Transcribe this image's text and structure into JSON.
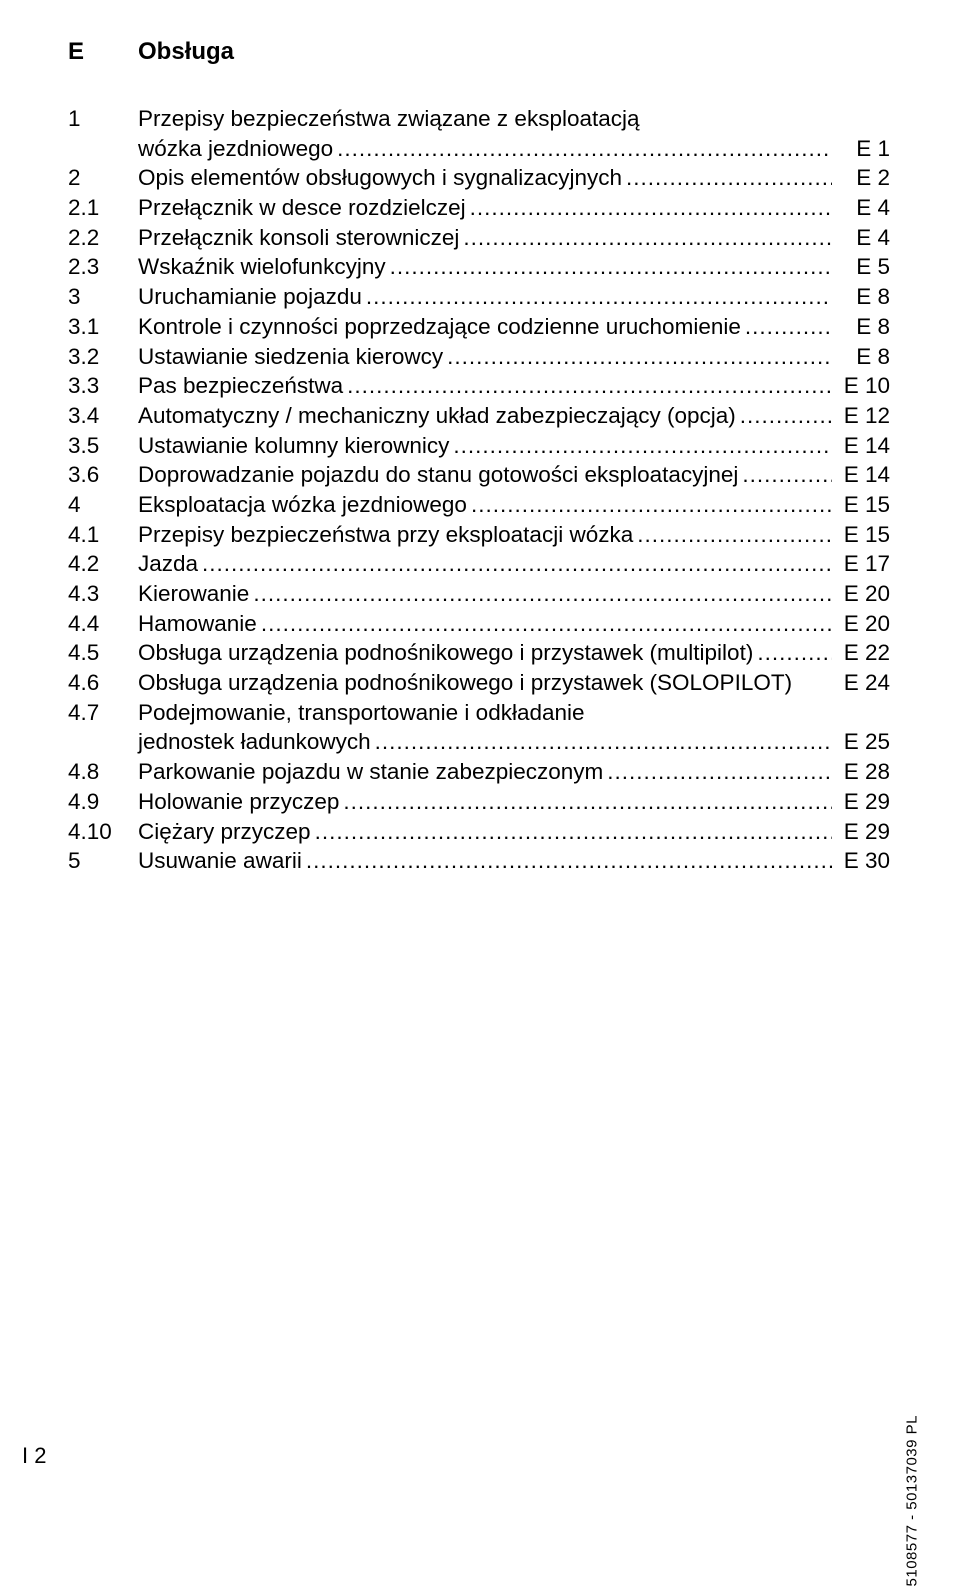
{
  "section": {
    "num": "E",
    "title": "Obsługa"
  },
  "entries": [
    {
      "num": "1",
      "title": "Przepisy bezpieczeństwa związane z eksploatacją",
      "wrap": true,
      "wrap_title": "wózka jezdniowego",
      "page": "E 1"
    },
    {
      "num": "2",
      "title": "Opis elementów obsługowych i sygnalizacyjnych",
      "page": "E 2"
    },
    {
      "num": "2.1",
      "title": "Przełącznik w desce rozdzielczej",
      "page": "E 4"
    },
    {
      "num": "2.2",
      "title": "Przełącznik konsoli sterowniczej",
      "page": "E 4"
    },
    {
      "num": "2.3",
      "title": "Wskaźnik wielofunkcyjny",
      "page": "E 5"
    },
    {
      "num": "3",
      "title": "Uruchamianie pojazdu",
      "page": "E 8"
    },
    {
      "num": "3.1",
      "title": "Kontrole i czynności poprzedzające codzienne uruchomienie",
      "page": "E 8"
    },
    {
      "num": "3.2",
      "title": "Ustawianie siedzenia kierowcy",
      "page": "E 8"
    },
    {
      "num": "3.3",
      "title": "Pas bezpieczeństwa",
      "page": "E 10"
    },
    {
      "num": "3.4",
      "title": "Automatyczny / mechaniczny układ zabezpieczający (opcja)",
      "page": "E 12"
    },
    {
      "num": "3.5",
      "title": "Ustawianie kolumny kierownicy",
      "page": "E 14"
    },
    {
      "num": "3.6",
      "title": "Doprowadzanie pojazdu do stanu gotowości eksploatacyjnej",
      "page": "E 14"
    },
    {
      "num": "4",
      "title": "Eksploatacja wózka jezdniowego",
      "page": "E 15"
    },
    {
      "num": "4.1",
      "title": "Przepisy bezpieczeństwa przy eksploatacji wózka",
      "page": "E 15"
    },
    {
      "num": "4.2",
      "title": "Jazda",
      "page": "E 17"
    },
    {
      "num": "4.3",
      "title": "Kierowanie",
      "page": "E 20"
    },
    {
      "num": "4.4",
      "title": "Hamowanie",
      "page": "E 20"
    },
    {
      "num": "4.5",
      "title": "Obsługa urządzenia podnośnikowego i przystawek (multipilot)",
      "page": "E 22"
    },
    {
      "num": "4.6",
      "title": "Obsługa urządzenia podnośnikowego i przystawek (SOLOPILOT)",
      "page": "E 24",
      "nodots": true
    },
    {
      "num": "4.7",
      "title": "Podejmowanie, transportowanie i odkładanie",
      "wrap": true,
      "wrap_title": "jednostek ładunkowych",
      "page": "E 25"
    },
    {
      "num": "4.8",
      "title": "Parkowanie pojazdu w stanie zabezpieczonym",
      "page": "E 28"
    },
    {
      "num": "4.9",
      "title": "Holowanie przyczep",
      "page": "E 29"
    },
    {
      "num": "4.10",
      "title": "Ciężary przyczep",
      "page": "E 29"
    },
    {
      "num": "5",
      "title": "Usuwanie awarii",
      "page": "E 30"
    }
  ],
  "side_code": "5108577 - 50137039 PL",
  "page_number": "I 2"
}
